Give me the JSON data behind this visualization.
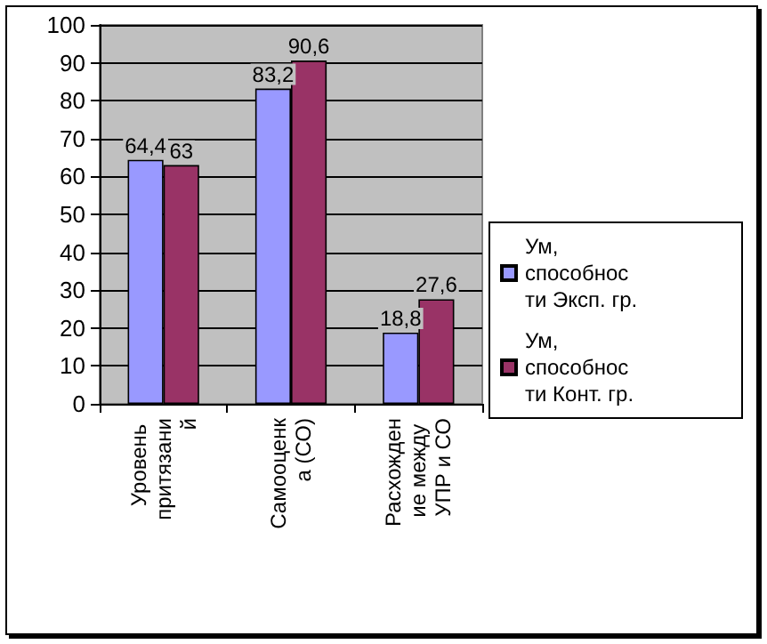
{
  "chart_data": {
    "type": "bar",
    "categories": [
      "Уровень притязаний",
      "Самооценка (СО)",
      "Расхождение между УПР и СО"
    ],
    "series": [
      {
        "name": "Ум, способности Эксп. гр.",
        "color": "#9999ff",
        "values": [
          64.4,
          83.2,
          18.8
        ],
        "value_labels": [
          "64,4",
          "83,2",
          "18,8"
        ]
      },
      {
        "name": "Ум, способности Конт. гр.",
        "color": "#993366",
        "values": [
          63,
          90.6,
          27.6
        ],
        "value_labels": [
          "63",
          "90,6",
          "27,6"
        ]
      }
    ],
    "ylim": [
      0,
      100
    ],
    "yticks": [
      0,
      10,
      20,
      30,
      40,
      50,
      60,
      70,
      80,
      90,
      100
    ],
    "grid": "y",
    "legend": "right"
  }
}
